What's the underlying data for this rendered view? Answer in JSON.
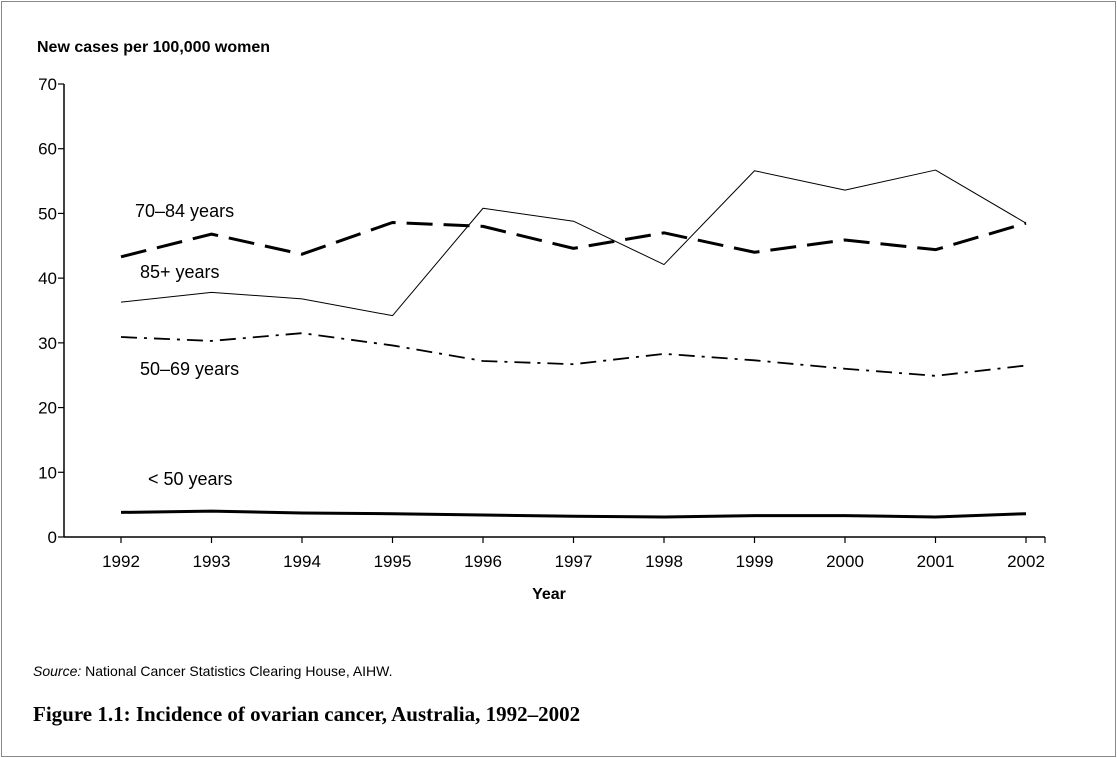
{
  "chart_data": {
    "type": "line",
    "ylabel": "New cases per 100,000 women",
    "xlabel": "Year",
    "ylim": [
      0,
      70
    ],
    "yticks": [
      0,
      10,
      20,
      30,
      40,
      50,
      60,
      70
    ],
    "categories": [
      "1992",
      "1993",
      "1994",
      "1995",
      "1996",
      "1997",
      "1998",
      "1999",
      "2000",
      "2001",
      "2002"
    ],
    "grid": false,
    "series": [
      {
        "name": "70–84 years",
        "style": "dashed-thick",
        "values": [
          43.3,
          46.8,
          43.7,
          48.6,
          48.0,
          44.6,
          47.0,
          44.0,
          45.9,
          44.4,
          48.5
        ]
      },
      {
        "name": "85+ years",
        "style": "solid-thin",
        "values": [
          36.3,
          37.8,
          36.8,
          34.2,
          50.8,
          48.8,
          42.1,
          56.6,
          53.6,
          56.7,
          48.5
        ]
      },
      {
        "name": "50–69 years",
        "style": "dash-dot",
        "values": [
          30.9,
          30.3,
          31.5,
          29.6,
          27.2,
          26.7,
          28.3,
          27.3,
          26.0,
          24.9,
          26.5
        ]
      },
      {
        "name": "< 50 years",
        "style": "solid-thick",
        "values": [
          3.8,
          4.0,
          3.7,
          3.6,
          3.4,
          3.2,
          3.1,
          3.3,
          3.3,
          3.1,
          3.6
        ]
      }
    ]
  },
  "source_label": "Source:",
  "source_text": " National Cancer Statistics Clearing House, AIHW.",
  "caption": "Figure 1.1: Incidence of ovarian cancer, Australia, 1992–2002"
}
